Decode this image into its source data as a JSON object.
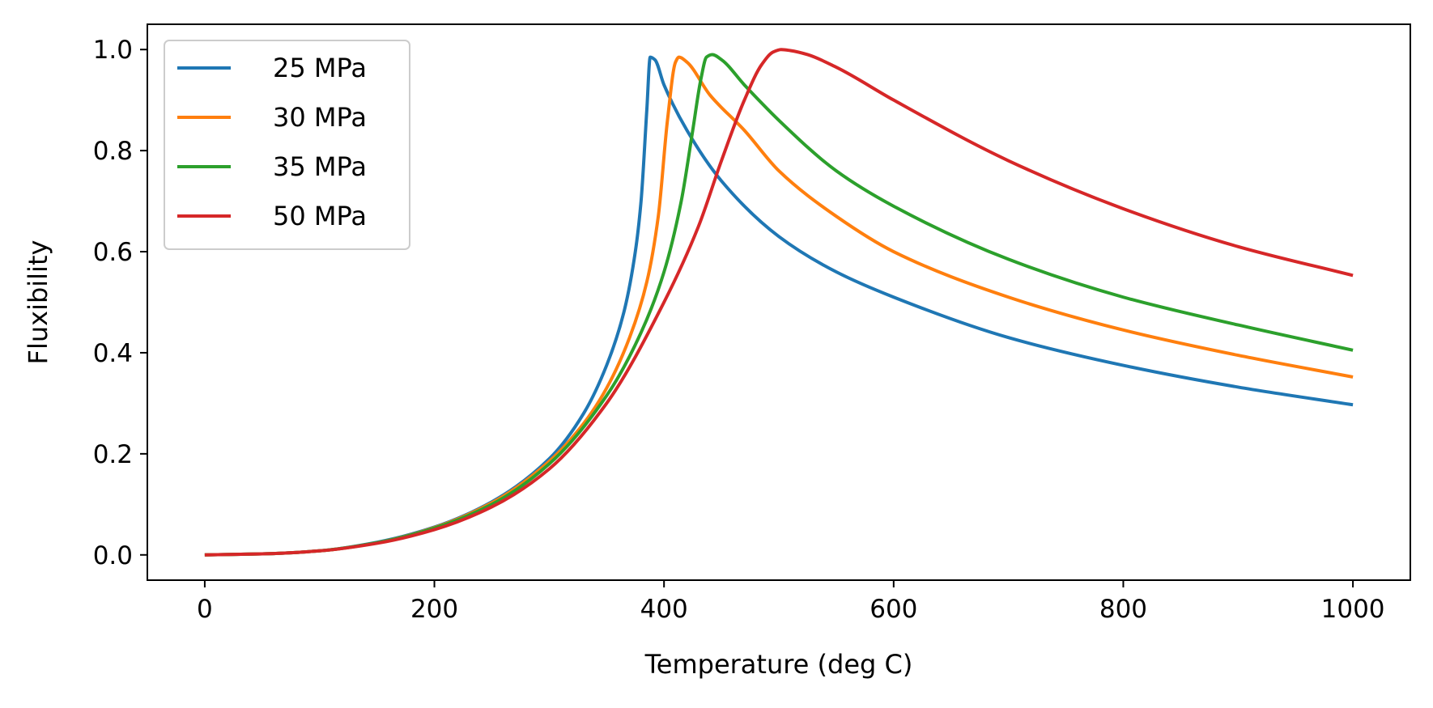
{
  "chart_data": {
    "type": "line",
    "xlabel": "Temperature (deg C)",
    "ylabel": "Fluxibility",
    "xlim": [
      -50,
      1050
    ],
    "ylim": [
      -0.05,
      1.05
    ],
    "xticks": [
      0,
      200,
      400,
      600,
      800,
      1000
    ],
    "xtick_labels": [
      "0",
      "200",
      "400",
      "600",
      "800",
      "1000"
    ],
    "yticks": [
      0.0,
      0.2,
      0.4,
      0.6,
      0.8,
      1.0
    ],
    "ytick_labels": [
      "0.0",
      "0.2",
      "0.4",
      "0.6",
      "0.8",
      "1.0"
    ],
    "grid": false,
    "legend_position": "top-left",
    "series": [
      {
        "name": "25 MPa",
        "color": "#1f77b4",
        "x": [
          0,
          50,
          100,
          150,
          200,
          250,
          300,
          330,
          350,
          365,
          375,
          380,
          385,
          388,
          392,
          400,
          420,
          450,
          500,
          550,
          600,
          700,
          800,
          900,
          1000
        ],
        "y": [
          0,
          0.002,
          0.008,
          0.025,
          0.055,
          0.105,
          0.19,
          0.28,
          0.375,
          0.48,
          0.6,
          0.7,
          0.88,
          0.985,
          0.98,
          0.93,
          0.84,
          0.74,
          0.63,
          0.56,
          0.51,
          0.43,
          0.375,
          0.332,
          0.297
        ]
      },
      {
        "name": "30 MPa",
        "color": "#ff7f0e",
        "x": [
          0,
          50,
          100,
          150,
          200,
          250,
          300,
          330,
          350,
          370,
          385,
          395,
          403,
          410,
          413,
          420,
          440,
          470,
          500,
          550,
          600,
          700,
          800,
          900,
          1000
        ],
        "y": [
          0,
          0.002,
          0.008,
          0.024,
          0.054,
          0.103,
          0.185,
          0.26,
          0.33,
          0.43,
          0.54,
          0.67,
          0.86,
          0.975,
          0.985,
          0.975,
          0.91,
          0.84,
          0.76,
          0.67,
          0.6,
          0.51,
          0.445,
          0.395,
          0.352
        ]
      },
      {
        "name": "35 MPa",
        "color": "#2ca02c",
        "x": [
          0,
          50,
          100,
          150,
          200,
          250,
          300,
          350,
          380,
          400,
          415,
          425,
          432,
          437,
          442,
          450,
          470,
          500,
          550,
          600,
          700,
          800,
          900,
          1000
        ],
        "y": [
          0,
          0.002,
          0.008,
          0.024,
          0.053,
          0.1,
          0.18,
          0.315,
          0.44,
          0.56,
          0.7,
          0.84,
          0.94,
          0.985,
          0.99,
          0.98,
          0.93,
          0.86,
          0.76,
          0.69,
          0.585,
          0.51,
          0.455,
          0.405
        ]
      },
      {
        "name": "50 MPa",
        "color": "#d62728",
        "x": [
          0,
          50,
          100,
          150,
          200,
          250,
          300,
          350,
          400,
          430,
          450,
          470,
          485,
          495,
          502,
          510,
          525,
          550,
          600,
          700,
          800,
          900,
          1000
        ],
        "y": [
          0,
          0.002,
          0.008,
          0.023,
          0.05,
          0.095,
          0.17,
          0.3,
          0.5,
          0.65,
          0.78,
          0.9,
          0.97,
          0.995,
          1.0,
          0.998,
          0.99,
          0.965,
          0.9,
          0.78,
          0.685,
          0.61,
          0.553
        ]
      }
    ]
  }
}
